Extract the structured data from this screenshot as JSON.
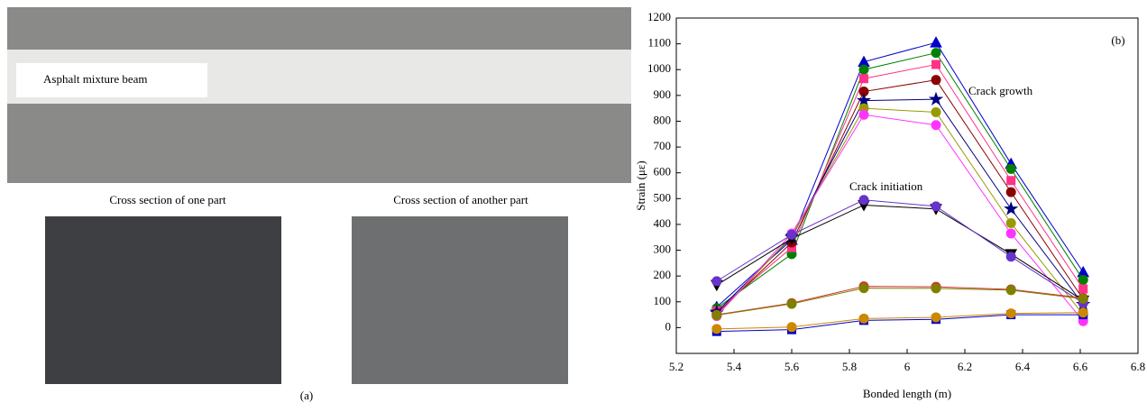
{
  "photo_labels": {
    "beam": "Asphalt mixture beam",
    "left_section": "Cross section of one part",
    "right_section": "Cross section of another part",
    "panel": "(a)"
  },
  "chart_data": {
    "type": "line",
    "panel": "(b)",
    "x_label": "Bonded length (m)",
    "y_label": "Strain (με)",
    "annotations": [
      "Crack growth",
      "Crack initiation"
    ],
    "x": [
      5.34,
      5.6,
      5.85,
      6.1,
      6.36,
      6.61
    ],
    "xlim": [
      5.2,
      6.8
    ],
    "xticks": [
      5.2,
      5.4,
      5.6,
      5.8,
      6.0,
      6.2,
      6.4,
      6.6,
      6.8
    ],
    "ylim": [
      -100,
      1200
    ],
    "yticks": [
      0,
      100,
      200,
      300,
      400,
      500,
      600,
      700,
      800,
      900,
      1000,
      1100,
      1200
    ],
    "series": [
      {
        "color": "#0000cc",
        "marker": "triangle",
        "values": [
          80,
          340,
          1030,
          1105,
          635,
          215
        ]
      },
      {
        "color": "#008000",
        "marker": "circle",
        "values": [
          75,
          285,
          1000,
          1065,
          615,
          185
        ]
      },
      {
        "color": "#ff3388",
        "marker": "square",
        "values": [
          65,
          310,
          965,
          1020,
          570,
          150
        ]
      },
      {
        "color": "#8b0000",
        "marker": "circle",
        "values": [
          55,
          330,
          915,
          960,
          525,
          110
        ]
      },
      {
        "color": "#000080",
        "marker": "star",
        "values": [
          60,
          350,
          880,
          885,
          460,
          90
        ]
      },
      {
        "color": "#999900",
        "marker": "circle",
        "values": [
          45,
          355,
          850,
          835,
          405,
          50
        ]
      },
      {
        "color": "#ff33ff",
        "marker": "circle",
        "values": [
          45,
          365,
          825,
          785,
          365,
          25
        ]
      },
      {
        "color": "#000000",
        "marker": "down-triangle",
        "values": [
          165,
          345,
          475,
          460,
          285,
          105
        ]
      },
      {
        "color": "#6633cc",
        "marker": "circle",
        "values": [
          180,
          360,
          495,
          470,
          275,
          95
        ]
      },
      {
        "color": "#cc3333",
        "marker": "circle",
        "values": [
          50,
          95,
          160,
          158,
          148,
          115
        ]
      },
      {
        "color": "#808000",
        "marker": "circle",
        "values": [
          48,
          92,
          153,
          152,
          145,
          112
        ]
      },
      {
        "color": "#0000cc",
        "marker": "square",
        "values": [
          -15,
          -8,
          28,
          32,
          50,
          50
        ]
      },
      {
        "color": "#cc8800",
        "marker": "circle",
        "values": [
          -5,
          2,
          35,
          40,
          55,
          58
        ]
      }
    ]
  }
}
